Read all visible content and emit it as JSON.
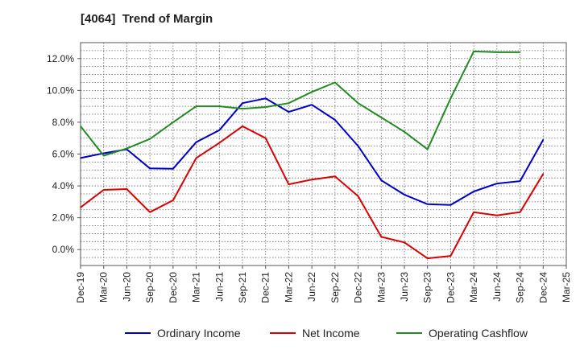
{
  "chart_data": {
    "type": "line",
    "title": "[4064]  Trend of Margin",
    "xlabel": "",
    "ylabel": "",
    "x": [
      "Dec-19",
      "Mar-20",
      "Jun-20",
      "Sep-20",
      "Dec-20",
      "Mar-21",
      "Jun-21",
      "Sep-21",
      "Dec-21",
      "Mar-22",
      "Jun-22",
      "Sep-22",
      "Dec-22",
      "Mar-23",
      "Jun-23",
      "Sep-23",
      "Dec-23",
      "Mar-24",
      "Jun-24",
      "Sep-24",
      "Dec-24",
      "Mar-25"
    ],
    "ylim": [
      -1.0,
      13.0
    ],
    "yticks": [
      0,
      2,
      4,
      6,
      8,
      10,
      12
    ],
    "ytick_labels": [
      "0.0%",
      "2.0%",
      "4.0%",
      "6.0%",
      "8.0%",
      "10.0%",
      "12.0%"
    ],
    "grid": true,
    "legend_position": "bottom",
    "series": [
      {
        "name": "Ordinary Income",
        "color": "#0000cc",
        "values": [
          5.75,
          6.05,
          6.3,
          5.1,
          5.08,
          6.75,
          7.5,
          9.2,
          9.5,
          8.65,
          9.1,
          8.15,
          6.5,
          4.35,
          3.45,
          2.85,
          2.8,
          3.65,
          4.15,
          4.3,
          6.9,
          null
        ]
      },
      {
        "name": "Net Income",
        "color": "#dd0000",
        "values": [
          2.65,
          3.75,
          3.8,
          2.35,
          3.1,
          5.75,
          6.7,
          7.75,
          7.0,
          4.1,
          4.4,
          4.6,
          3.35,
          0.8,
          0.45,
          -0.55,
          -0.4,
          2.35,
          2.15,
          2.35,
          4.75,
          null
        ]
      },
      {
        "name": "Operating Cashflow",
        "color": "#228b22",
        "values": [
          7.75,
          5.9,
          6.35,
          6.95,
          8.0,
          9.0,
          9.0,
          8.85,
          8.95,
          9.2,
          9.9,
          10.5,
          9.2,
          8.3,
          7.4,
          6.3,
          9.5,
          12.45,
          12.4,
          12.4,
          null,
          null
        ]
      }
    ]
  }
}
